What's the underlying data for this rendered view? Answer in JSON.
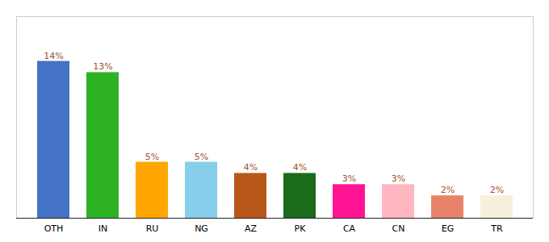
{
  "chart_data": {
    "type": "bar",
    "categories": [
      "OTH",
      "IN",
      "RU",
      "NG",
      "AZ",
      "PK",
      "CA",
      "CN",
      "EG",
      "TR"
    ],
    "values": [
      14,
      13,
      5,
      5,
      4,
      4,
      3,
      3,
      2,
      2
    ],
    "value_labels": [
      "14%",
      "13%",
      "5%",
      "5%",
      "4%",
      "4%",
      "3%",
      "3%",
      "2%",
      "2%"
    ],
    "colors": [
      "#4472C4",
      "#2DB224",
      "#FFA500",
      "#87CEEB",
      "#B8571A",
      "#1A6B1A",
      "#FF1493",
      "#FFB6C1",
      "#E8836A",
      "#F5F0DC"
    ],
    "ylim": [
      0,
      18
    ],
    "data_labels": true,
    "tick_labels": "x",
    "grid": false
  }
}
